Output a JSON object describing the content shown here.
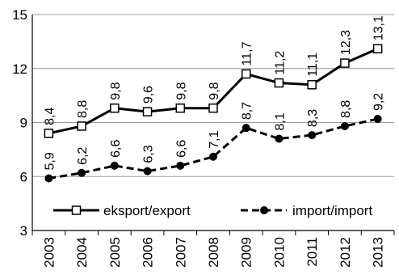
{
  "chart_data": {
    "type": "line",
    "categories": [
      "2003",
      "2004",
      "2005",
      "2006",
      "2007",
      "2008",
      "2009",
      "2010",
      "2011",
      "2012",
      "2013"
    ],
    "series": [
      {
        "name": "eksport/export",
        "values": [
          8.4,
          8.8,
          9.8,
          9.6,
          9.8,
          9.8,
          11.7,
          11.2,
          11.1,
          12.3,
          13.1
        ],
        "labels": [
          "8,4",
          "8,8",
          "9,8",
          "9,6",
          "9,8",
          "9,8",
          "11,7",
          "11,2",
          "11,1",
          "12,3",
          "13,1"
        ],
        "line_style": "solid",
        "marker": "open-square",
        "color": "#000000"
      },
      {
        "name": "import/import",
        "values": [
          5.9,
          6.2,
          6.6,
          6.3,
          6.6,
          7.1,
          8.7,
          8.1,
          8.3,
          8.8,
          9.2
        ],
        "labels": [
          "5,9",
          "6,2",
          "6,6",
          "6,3",
          "6,6",
          "7,1",
          "8,7",
          "8,1",
          "8,3",
          "8,8",
          "9,2"
        ],
        "line_style": "dashed",
        "marker": "filled-circle",
        "color": "#000000"
      }
    ],
    "y_ticks": [
      "3",
      "6",
      "9",
      "12",
      "15"
    ],
    "ylim": [
      3,
      15
    ],
    "grid": "horizontal",
    "legend_position": "bottom-inside"
  }
}
